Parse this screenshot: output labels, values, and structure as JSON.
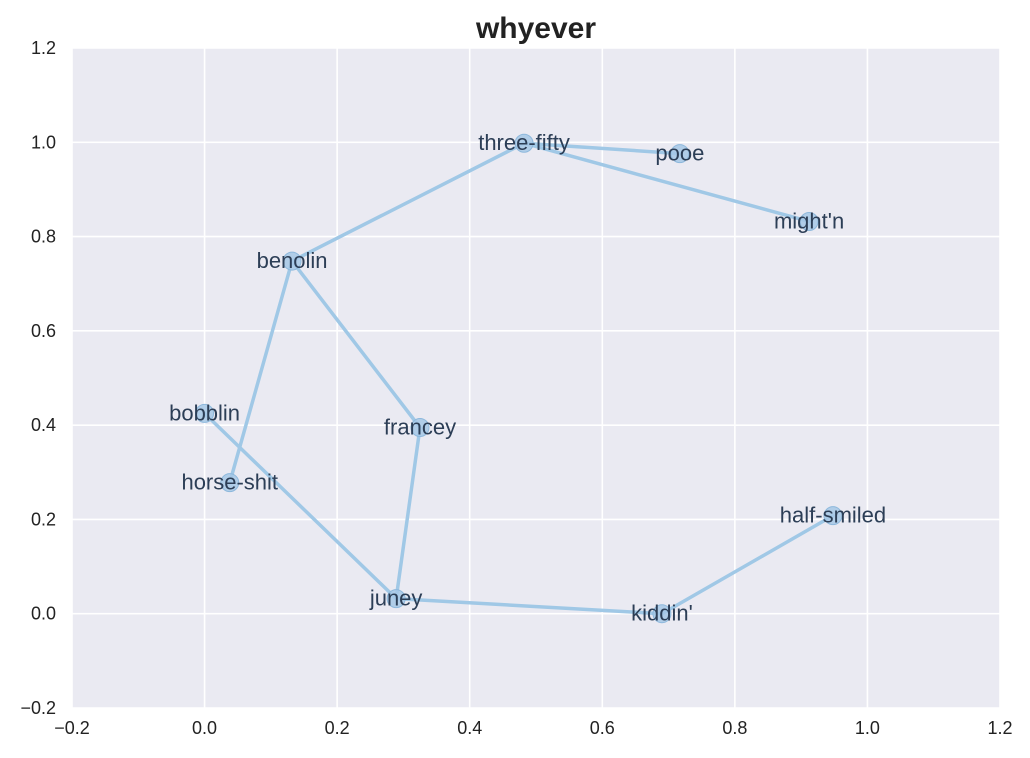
{
  "chart_data": {
    "type": "scatter",
    "title": "whyever",
    "xlabel": "",
    "ylabel": "",
    "xlim": [
      -0.2,
      1.2
    ],
    "ylim": [
      -0.2,
      1.2
    ],
    "grid": true,
    "xticks": [
      "−0.2",
      "0.0",
      "0.2",
      "0.4",
      "0.6",
      "0.8",
      "1.0",
      "1.2"
    ],
    "yticks": [
      "−0.2",
      "0.0",
      "0.2",
      "0.4",
      "0.6",
      "0.8",
      "1.0",
      "1.2"
    ],
    "xtick_values": [
      -0.2,
      0.0,
      0.2,
      0.4,
      0.6,
      0.8,
      1.0,
      1.2
    ],
    "ytick_values": [
      -0.2,
      0.0,
      0.2,
      0.4,
      0.6,
      0.8,
      1.0,
      1.2
    ],
    "points": [
      {
        "label": "three-fifty",
        "x": 0.482,
        "y": 0.998
      },
      {
        "label": "pooe",
        "x": 0.717,
        "y": 0.976
      },
      {
        "label": "might'n",
        "x": 0.912,
        "y": 0.832
      },
      {
        "label": "benolin",
        "x": 0.132,
        "y": 0.748
      },
      {
        "label": "bobblin",
        "x": 0.0,
        "y": 0.425
      },
      {
        "label": "francey",
        "x": 0.325,
        "y": 0.395
      },
      {
        "label": "horse-shit",
        "x": 0.038,
        "y": 0.278
      },
      {
        "label": "half-smiled",
        "x": 0.948,
        "y": 0.208
      },
      {
        "label": "juney",
        "x": 0.289,
        "y": 0.032
      },
      {
        "label": "kiddin'",
        "x": 0.69,
        "y": 0.0
      }
    ],
    "edges": [
      [
        "three-fifty",
        "pooe"
      ],
      [
        "three-fifty",
        "might'n"
      ],
      [
        "three-fifty",
        "benolin"
      ],
      [
        "benolin",
        "horse-shit"
      ],
      [
        "benolin",
        "francey"
      ],
      [
        "francey",
        "juney"
      ],
      [
        "bobblin",
        "juney"
      ],
      [
        "juney",
        "kiddin'"
      ],
      [
        "kiddin'",
        "half-smiled"
      ]
    ],
    "colors": {
      "plot_bg": "#eaeaf2",
      "grid": "#ffffff",
      "line": "#a0c8e6",
      "marker_fill": "#a6c8e6",
      "marker_edge": "#8db8dc",
      "label": "#2c3e56"
    }
  }
}
